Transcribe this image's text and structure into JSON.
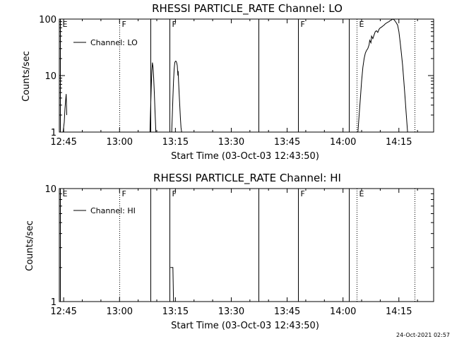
{
  "timestamp": "24-Oct-2021 02:57",
  "chart_data": [
    {
      "type": "line",
      "title": "RHESSI PARTICLE_RATE Channel: LO",
      "xlabel": "Start Time (03-Oct-03 12:43:50)",
      "ylabel": "Counts/sec",
      "yscale": "log",
      "xlim": [
        "12:43:50",
        "14:24:20"
      ],
      "ylim": [
        1,
        100
      ],
      "x_ticks": [
        "12:45",
        "13:00",
        "13:15",
        "13:30",
        "13:45",
        "14:00",
        "14:15"
      ],
      "y_ticks": [
        "1",
        "10",
        "100"
      ],
      "legend": {
        "label": "Channel: LO",
        "position": "top-left"
      },
      "event_lines": [
        {
          "time": "12:44:05",
          "style": "solid",
          "label": "E"
        },
        {
          "time": "13:00:00",
          "style": "dotted",
          "label": "F"
        },
        {
          "time": "13:08:20",
          "style": "solid",
          "label": ""
        },
        {
          "time": "13:13:20",
          "style": "solid",
          "label": "F"
        },
        {
          "time": "13:37:20",
          "style": "solid",
          "label": ""
        },
        {
          "time": "13:48:00",
          "style": "solid",
          "label": "F"
        },
        {
          "time": "14:01:40",
          "style": "solid",
          "label": ""
        },
        {
          "time": "14:03:40",
          "style": "dotted",
          "label": "E"
        },
        {
          "time": "14:19:10",
          "style": "dotted",
          "label": ""
        }
      ],
      "series": [
        {
          "name": "Channel: LO",
          "segments": [
            [
              [
                "12:44:50",
                1
              ],
              [
                "12:45:10",
                1.5
              ],
              [
                "12:45:20",
                2.5
              ],
              [
                "12:45:30",
                3.5
              ],
              [
                "12:45:40",
                4.7
              ],
              [
                "12:45:45",
                3.2
              ],
              [
                "12:45:50",
                2.0
              ]
            ],
            [
              [
                "13:08:10",
                1
              ],
              [
                "13:08:20",
                2.5
              ],
              [
                "13:08:30",
                6
              ],
              [
                "13:08:40",
                12
              ],
              [
                "13:08:50",
                17
              ],
              [
                "13:09:00",
                14
              ],
              [
                "13:09:10",
                9
              ],
              [
                "13:09:20",
                5
              ],
              [
                "13:09:30",
                2.5
              ],
              [
                "13:09:45",
                1
              ]
            ],
            [
              [
                "13:14:00",
                1
              ],
              [
                "13:14:10",
                2
              ],
              [
                "13:14:20",
                4
              ],
              [
                "13:14:30",
                8
              ],
              [
                "13:14:40",
                13
              ],
              [
                "13:14:50",
                17
              ],
              [
                "13:15:00",
                18
              ],
              [
                "13:15:10",
                18
              ],
              [
                "13:15:20",
                17
              ],
              [
                "13:15:30",
                15
              ],
              [
                "13:15:40",
                10
              ],
              [
                "13:15:45",
                12
              ],
              [
                "13:15:50",
                8
              ],
              [
                "13:16:00",
                5
              ],
              [
                "13:16:10",
                3
              ],
              [
                "13:16:20",
                1.8
              ],
              [
                "13:16:30",
                1.2
              ],
              [
                "13:16:40",
                1
              ]
            ],
            [
              [
                "14:04:00",
                1
              ],
              [
                "14:04:20",
                2
              ],
              [
                "14:04:40",
                4
              ],
              [
                "14:05:00",
                8
              ],
              [
                "14:05:20",
                14
              ],
              [
                "14:05:40",
                20
              ],
              [
                "14:06:00",
                25
              ],
              [
                "14:06:20",
                28
              ],
              [
                "14:06:40",
                30
              ],
              [
                "14:07:00",
                35
              ],
              [
                "14:07:10",
                42
              ],
              [
                "14:07:30",
                38
              ],
              [
                "14:07:40",
                50
              ],
              [
                "14:08:00",
                45
              ],
              [
                "14:08:20",
                52
              ],
              [
                "14:08:40",
                60
              ],
              [
                "14:09:00",
                62
              ],
              [
                "14:09:20",
                58
              ],
              [
                "14:09:40",
                66
              ],
              [
                "14:10:00",
                70
              ],
              [
                "14:10:20",
                72
              ],
              [
                "14:10:40",
                75
              ],
              [
                "14:11:00",
                78
              ],
              [
                "14:11:20",
                82
              ],
              [
                "14:11:40",
                85
              ],
              [
                "14:12:00",
                88
              ],
              [
                "14:12:20",
                90
              ],
              [
                "14:12:40",
                94
              ],
              [
                "14:13:00",
                96
              ],
              [
                "14:13:20",
                100
              ],
              [
                "14:13:40",
                98
              ],
              [
                "14:14:00",
                92
              ],
              [
                "14:14:20",
                85
              ],
              [
                "14:14:40",
                78
              ],
              [
                "14:15:00",
                60
              ],
              [
                "14:15:20",
                40
              ],
              [
                "14:15:40",
                25
              ],
              [
                "14:16:00",
                15
              ],
              [
                "14:16:20",
                8
              ],
              [
                "14:16:40",
                4
              ],
              [
                "14:17:00",
                2
              ],
              [
                "14:17:20",
                1
              ]
            ]
          ]
        }
      ]
    },
    {
      "type": "line",
      "title": "RHESSI PARTICLE_RATE Channel: HI",
      "xlabel": "Start Time (03-Oct-03 12:43:50)",
      "ylabel": "Counts/sec",
      "yscale": "log",
      "xlim": [
        "12:43:50",
        "14:24:20"
      ],
      "ylim": [
        1,
        10
      ],
      "x_ticks": [
        "12:45",
        "13:00",
        "13:15",
        "13:30",
        "13:45",
        "14:00",
        "14:15"
      ],
      "y_ticks": [
        "1",
        "10"
      ],
      "legend": {
        "label": "Channel: HI",
        "position": "top-left"
      },
      "event_lines": [
        {
          "time": "12:44:05",
          "style": "solid",
          "label": "E"
        },
        {
          "time": "13:00:00",
          "style": "dotted",
          "label": "F"
        },
        {
          "time": "13:08:20",
          "style": "solid",
          "label": ""
        },
        {
          "time": "13:13:20",
          "style": "solid",
          "label": "F"
        },
        {
          "time": "13:37:20",
          "style": "solid",
          "label": ""
        },
        {
          "time": "13:48:00",
          "style": "solid",
          "label": "F"
        },
        {
          "time": "14:01:40",
          "style": "solid",
          "label": ""
        },
        {
          "time": "14:03:40",
          "style": "dotted",
          "label": "E"
        },
        {
          "time": "14:19:10",
          "style": "dotted",
          "label": ""
        }
      ],
      "series": [
        {
          "name": "Channel: HI",
          "segments": [
            [
              [
                "13:13:40",
                2
              ],
              [
                "13:14:10",
                2
              ],
              [
                "13:14:20",
                2
              ],
              [
                "13:14:30",
                1
              ]
            ]
          ]
        }
      ]
    }
  ]
}
